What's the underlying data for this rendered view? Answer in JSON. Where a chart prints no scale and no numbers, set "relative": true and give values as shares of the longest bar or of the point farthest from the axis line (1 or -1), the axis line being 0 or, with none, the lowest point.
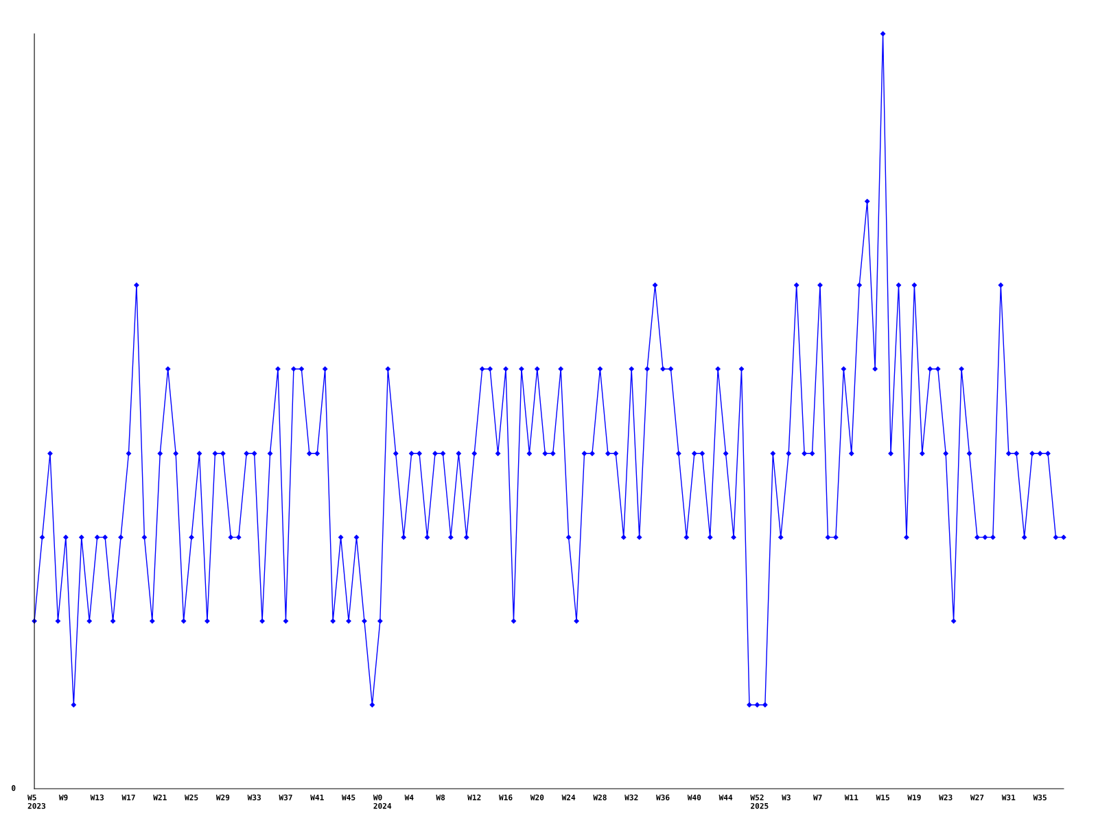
{
  "chart_data": {
    "type": "line",
    "relative": true,
    "marker": "diamond",
    "line_style": "solid",
    "grid": false,
    "legend": false,
    "annotations": [
      "0"
    ],
    "categories": [
      "W5\n2023",
      null,
      null,
      null,
      "W9",
      null,
      null,
      null,
      "W13",
      null,
      null,
      null,
      "W17",
      null,
      null,
      null,
      "W21",
      null,
      null,
      null,
      "W25",
      null,
      null,
      null,
      "W29",
      null,
      null,
      null,
      "W33",
      null,
      null,
      null,
      "W37",
      null,
      null,
      null,
      "W41",
      null,
      null,
      null,
      "W45",
      null,
      null,
      null,
      "W0\n2024",
      null,
      null,
      null,
      "W4",
      null,
      null,
      null,
      "W8",
      null,
      null,
      null,
      "W12",
      null,
      null,
      null,
      "W16",
      null,
      null,
      null,
      "W20",
      null,
      null,
      null,
      "W24",
      null,
      null,
      null,
      "W28",
      null,
      null,
      null,
      "W32",
      null,
      null,
      null,
      "W36",
      null,
      null,
      null,
      "W40",
      null,
      null,
      null,
      "W44",
      null,
      null,
      null,
      "W52\n2025",
      null,
      null,
      null,
      "W3",
      null,
      null,
      null,
      "W7",
      null,
      null,
      null,
      "W11",
      null,
      null,
      null,
      "W15",
      null,
      null,
      null,
      "W19",
      null,
      null,
      null,
      "W23",
      null,
      null,
      null,
      "W27",
      null,
      null,
      null,
      "W31",
      null,
      null,
      null,
      "W35",
      null,
      null,
      null
    ],
    "series": [
      {
        "color": "#0000ff",
        "values": [
          0.222,
          0.333,
          0.444,
          0.222,
          0.333,
          0.111,
          0.333,
          0.222,
          0.333,
          0.333,
          0.222,
          0.333,
          0.444,
          0.667,
          0.333,
          0.222,
          0.444,
          0.556,
          0.444,
          0.222,
          0.333,
          0.444,
          0.222,
          0.444,
          0.444,
          0.333,
          0.333,
          0.444,
          0.444,
          0.222,
          0.444,
          0.556,
          0.222,
          0.556,
          0.556,
          0.444,
          0.444,
          0.556,
          0.222,
          0.333,
          0.222,
          0.333,
          0.222,
          0.111,
          0.222,
          0.556,
          0.444,
          0.333,
          0.444,
          0.444,
          0.333,
          0.444,
          0.444,
          0.333,
          0.444,
          0.333,
          0.444,
          0.556,
          0.556,
          0.444,
          0.556,
          0.222,
          0.556,
          0.444,
          0.556,
          0.444,
          0.444,
          0.556,
          0.333,
          0.222,
          0.444,
          0.444,
          0.556,
          0.444,
          0.444,
          0.333,
          0.556,
          0.333,
          0.556,
          0.667,
          0.556,
          0.556,
          0.444,
          0.333,
          0.444,
          0.444,
          0.333,
          0.556,
          0.444,
          0.333,
          0.556,
          0.111,
          0.111,
          0.111,
          0.444,
          0.333,
          0.444,
          0.667,
          0.444,
          0.444,
          0.667,
          0.333,
          0.333,
          0.556,
          0.444,
          0.667,
          0.778,
          0.556,
          1,
          0.444,
          0.667,
          0.333,
          0.667,
          0.444,
          0.556,
          0.556,
          0.444,
          0.222,
          0.556,
          0.444,
          0.333,
          0.333,
          0.333,
          0.667,
          0.444,
          0.444,
          0.333,
          0.444,
          0.444,
          0.444,
          0.333,
          0.333
        ]
      }
    ]
  }
}
